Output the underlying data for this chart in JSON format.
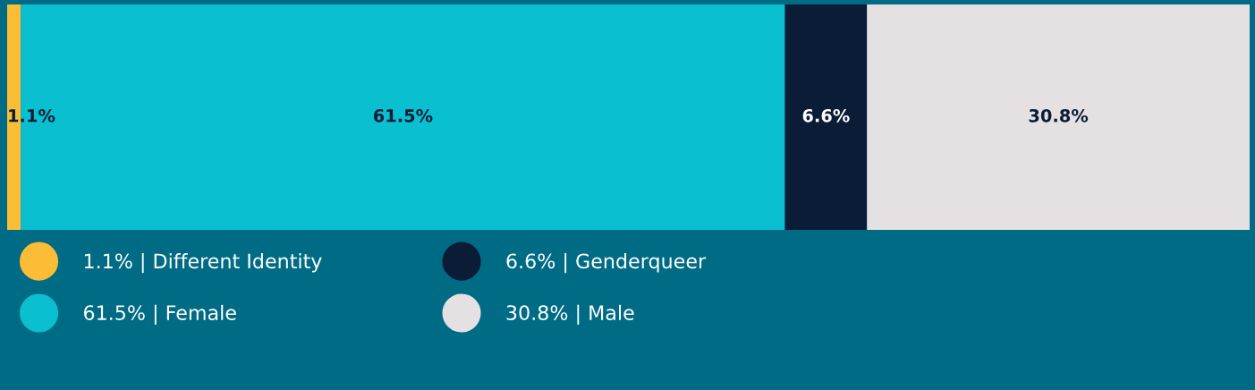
{
  "chart_data": {
    "type": "bar",
    "orientation": "horizontal",
    "stacked": true,
    "categories": [
      null
    ],
    "xlim": [
      0,
      100
    ],
    "tick_labels": false,
    "grid": false,
    "legend": "bottom",
    "marker": "circle",
    "series": [
      {
        "name": "1.1% | Different Identity",
        "color": "#fbbd36",
        "values": [
          1.1
        ],
        "value_labels": [
          "1.1%"
        ]
      },
      {
        "name": "61.5% | Female",
        "color": "#0abfd0",
        "values": [
          61.5
        ],
        "value_labels": [
          "61.5%"
        ]
      },
      {
        "name": "6.6% | Genderqueer",
        "color": "#0b1d36",
        "values": [
          6.6
        ],
        "value_labels": [
          "6.6%"
        ]
      },
      {
        "name": "30.8% | Male",
        "color": "#e5e0e2",
        "values": [
          30.8
        ],
        "value_labels": [
          "30.8%"
        ]
      }
    ]
  }
}
